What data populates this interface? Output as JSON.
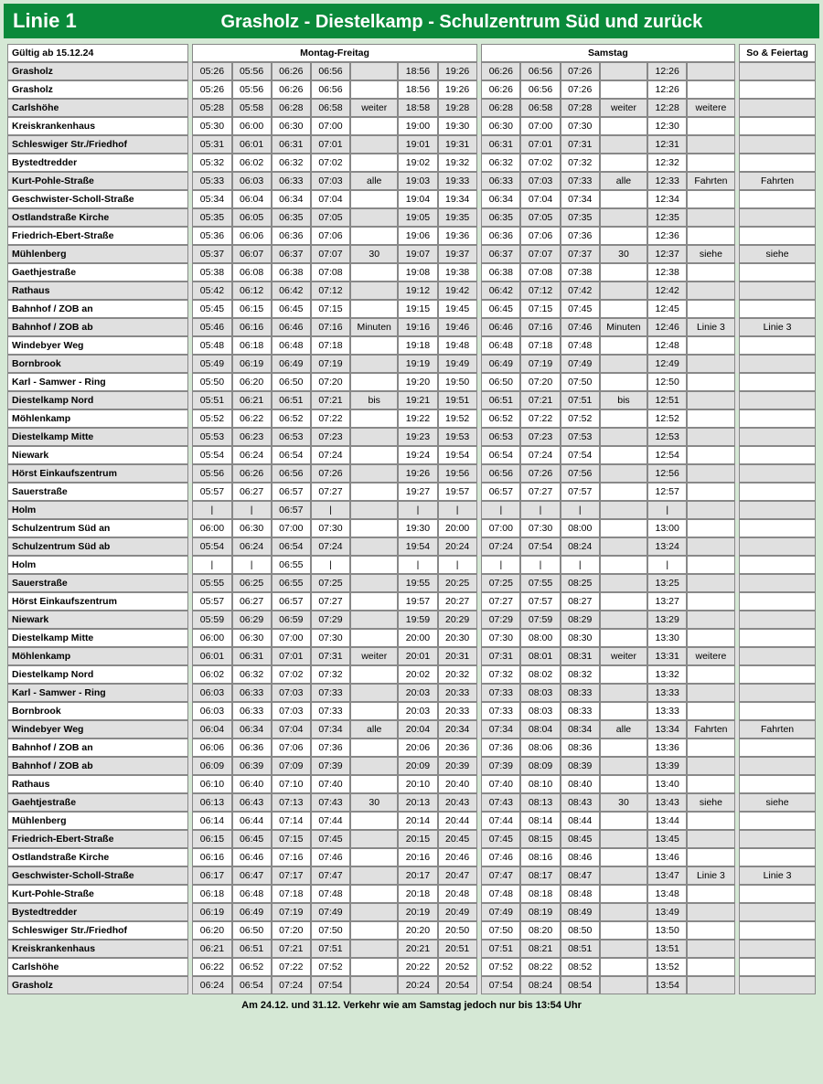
{
  "header": {
    "line": "Linie  1",
    "route": "Grasholz - Diestelkamp - Schulzentrum Süd und zurück"
  },
  "valid_from": "Gültig ab 15.12.24",
  "section_labels": {
    "mf": "Montag-Freitag",
    "sa": "Samstag",
    "so": "So & Feiertag"
  },
  "footer": "Am 24.12. und 31.12. Verkehr wie am Samstag jedoch nur bis 13:54 Uhr",
  "rows": [
    {
      "s": "Grasholz",
      "mf": [
        "05:26",
        "05:56",
        "06:26",
        "06:56",
        "",
        "18:56",
        "19:26"
      ],
      "sa": [
        "06:26",
        "06:56",
        "07:26",
        "",
        "12:26",
        ""
      ],
      "so": "",
      "sh": 1
    },
    {
      "s": "Grasholz",
      "mf": [
        "05:26",
        "05:56",
        "06:26",
        "06:56",
        "",
        "18:56",
        "19:26"
      ],
      "sa": [
        "06:26",
        "06:56",
        "07:26",
        "",
        "12:26",
        ""
      ],
      "so": ""
    },
    {
      "s": "Carlshöhe",
      "mf": [
        "05:28",
        "05:58",
        "06:28",
        "06:58",
        "weiter",
        "18:58",
        "19:28"
      ],
      "sa": [
        "06:28",
        "06:58",
        "07:28",
        "weiter",
        "12:28",
        "weitere"
      ],
      "so": "",
      "sh": 1
    },
    {
      "s": "Kreiskrankenhaus",
      "mf": [
        "05:30",
        "06:00",
        "06:30",
        "07:00",
        "",
        "19:00",
        "19:30"
      ],
      "sa": [
        "06:30",
        "07:00",
        "07:30",
        "",
        "12:30",
        ""
      ],
      "so": ""
    },
    {
      "s": "Schleswiger Str./Friedhof",
      "mf": [
        "05:31",
        "06:01",
        "06:31",
        "07:01",
        "",
        "19:01",
        "19:31"
      ],
      "sa": [
        "06:31",
        "07:01",
        "07:31",
        "",
        "12:31",
        ""
      ],
      "so": "",
      "sh": 1
    },
    {
      "s": "Bystedtredder",
      "mf": [
        "05:32",
        "06:02",
        "06:32",
        "07:02",
        "",
        "19:02",
        "19:32"
      ],
      "sa": [
        "06:32",
        "07:02",
        "07:32",
        "",
        "12:32",
        ""
      ],
      "so": ""
    },
    {
      "s": "Kurt-Pohle-Straße",
      "mf": [
        "05:33",
        "06:03",
        "06:33",
        "07:03",
        "alle",
        "19:03",
        "19:33"
      ],
      "sa": [
        "06:33",
        "07:03",
        "07:33",
        "alle",
        "12:33",
        "Fahrten"
      ],
      "so": "Fahrten",
      "sh": 1
    },
    {
      "s": "Geschwister-Scholl-Straße",
      "mf": [
        "05:34",
        "06:04",
        "06:34",
        "07:04",
        "",
        "19:04",
        "19:34"
      ],
      "sa": [
        "06:34",
        "07:04",
        "07:34",
        "",
        "12:34",
        ""
      ],
      "so": ""
    },
    {
      "s": "Ostlandstraße Kirche",
      "mf": [
        "05:35",
        "06:05",
        "06:35",
        "07:05",
        "",
        "19:05",
        "19:35"
      ],
      "sa": [
        "06:35",
        "07:05",
        "07:35",
        "",
        "12:35",
        ""
      ],
      "so": "",
      "sh": 1
    },
    {
      "s": "Friedrich-Ebert-Straße",
      "mf": [
        "05:36",
        "06:06",
        "06:36",
        "07:06",
        "",
        "19:06",
        "19:36"
      ],
      "sa": [
        "06:36",
        "07:06",
        "07:36",
        "",
        "12:36",
        ""
      ],
      "so": ""
    },
    {
      "s": "Mühlenberg",
      "mf": [
        "05:37",
        "06:07",
        "06:37",
        "07:07",
        "30",
        "19:07",
        "19:37"
      ],
      "sa": [
        "06:37",
        "07:07",
        "07:37",
        "30",
        "12:37",
        "siehe"
      ],
      "so": "siehe",
      "sh": 1
    },
    {
      "s": "Gaethjestraße",
      "mf": [
        "05:38",
        "06:08",
        "06:38",
        "07:08",
        "",
        "19:08",
        "19:38"
      ],
      "sa": [
        "06:38",
        "07:08",
        "07:38",
        "",
        "12:38",
        ""
      ],
      "so": ""
    },
    {
      "s": "Rathaus",
      "mf": [
        "05:42",
        "06:12",
        "06:42",
        "07:12",
        "",
        "19:12",
        "19:42"
      ],
      "sa": [
        "06:42",
        "07:12",
        "07:42",
        "",
        "12:42",
        ""
      ],
      "so": "",
      "sh": 1
    },
    {
      "s": "Bahnhof / ZOB an",
      "mf": [
        "05:45",
        "06:15",
        "06:45",
        "07:15",
        "",
        "19:15",
        "19:45"
      ],
      "sa": [
        "06:45",
        "07:15",
        "07:45",
        "",
        "12:45",
        ""
      ],
      "so": ""
    },
    {
      "s": "Bahnhof / ZOB ab",
      "mf": [
        "05:46",
        "06:16",
        "06:46",
        "07:16",
        "Minuten",
        "19:16",
        "19:46"
      ],
      "sa": [
        "06:46",
        "07:16",
        "07:46",
        "Minuten",
        "12:46",
        "Linie 3"
      ],
      "so": "Linie 3",
      "sh": 1
    },
    {
      "s": "Windebyer Weg",
      "mf": [
        "05:48",
        "06:18",
        "06:48",
        "07:18",
        "",
        "19:18",
        "19:48"
      ],
      "sa": [
        "06:48",
        "07:18",
        "07:48",
        "",
        "12:48",
        ""
      ],
      "so": ""
    },
    {
      "s": "Bornbrook",
      "mf": [
        "05:49",
        "06:19",
        "06:49",
        "07:19",
        "",
        "19:19",
        "19:49"
      ],
      "sa": [
        "06:49",
        "07:19",
        "07:49",
        "",
        "12:49",
        ""
      ],
      "so": "",
      "sh": 1
    },
    {
      "s": "Karl - Samwer - Ring",
      "mf": [
        "05:50",
        "06:20",
        "06:50",
        "07:20",
        "",
        "19:20",
        "19:50"
      ],
      "sa": [
        "06:50",
        "07:20",
        "07:50",
        "",
        "12:50",
        ""
      ],
      "so": ""
    },
    {
      "s": "Diestelkamp Nord",
      "mf": [
        "05:51",
        "06:21",
        "06:51",
        "07:21",
        "bis",
        "19:21",
        "19:51"
      ],
      "sa": [
        "06:51",
        "07:21",
        "07:51",
        "bis",
        "12:51",
        ""
      ],
      "so": "",
      "sh": 1
    },
    {
      "s": "Möhlenkamp",
      "mf": [
        "05:52",
        "06:22",
        "06:52",
        "07:22",
        "",
        "19:22",
        "19:52"
      ],
      "sa": [
        "06:52",
        "07:22",
        "07:52",
        "",
        "12:52",
        ""
      ],
      "so": ""
    },
    {
      "s": "Diestelkamp Mitte",
      "mf": [
        "05:53",
        "06:23",
        "06:53",
        "07:23",
        "",
        "19:23",
        "19:53"
      ],
      "sa": [
        "06:53",
        "07:23",
        "07:53",
        "",
        "12:53",
        ""
      ],
      "so": "",
      "sh": 1
    },
    {
      "s": "Niewark",
      "mf": [
        "05:54",
        "06:24",
        "06:54",
        "07:24",
        "",
        "19:24",
        "19:54"
      ],
      "sa": [
        "06:54",
        "07:24",
        "07:54",
        "",
        "12:54",
        ""
      ],
      "so": ""
    },
    {
      "s": "Hörst Einkaufszentrum",
      "mf": [
        "05:56",
        "06:26",
        "06:56",
        "07:26",
        "",
        "19:26",
        "19:56"
      ],
      "sa": [
        "06:56",
        "07:26",
        "07:56",
        "",
        "12:56",
        ""
      ],
      "so": "",
      "sh": 1
    },
    {
      "s": "Sauerstraße",
      "mf": [
        "05:57",
        "06:27",
        "06:57",
        "07:27",
        "",
        "19:27",
        "19:57"
      ],
      "sa": [
        "06:57",
        "07:27",
        "07:57",
        "",
        "12:57",
        ""
      ],
      "so": ""
    },
    {
      "s": "Holm",
      "mf": [
        "|",
        "|",
        "06:57",
        "|",
        "",
        "|",
        "|"
      ],
      "sa": [
        "|",
        "|",
        "|",
        "",
        "|",
        ""
      ],
      "so": "",
      "sh": 1
    },
    {
      "s": "Schulzentrum Süd an",
      "mf": [
        "06:00",
        "06:30",
        "07:00",
        "07:30",
        "",
        "19:30",
        "20:00"
      ],
      "sa": [
        "07:00",
        "07:30",
        "08:00",
        "",
        "13:00",
        ""
      ],
      "so": ""
    },
    {
      "s": "Schulzentrum Süd ab",
      "mf": [
        "05:54",
        "06:24",
        "06:54",
        "07:24",
        "",
        "19:54",
        "20:24"
      ],
      "sa": [
        "07:24",
        "07:54",
        "08:24",
        "",
        "13:24",
        ""
      ],
      "so": "",
      "sh": 1
    },
    {
      "s": "Holm",
      "mf": [
        "|",
        "|",
        "06:55",
        "|",
        "",
        "|",
        "|"
      ],
      "sa": [
        "|",
        "|",
        "|",
        "",
        "|",
        ""
      ],
      "so": ""
    },
    {
      "s": "Sauerstraße",
      "mf": [
        "05:55",
        "06:25",
        "06:55",
        "07:25",
        "",
        "19:55",
        "20:25"
      ],
      "sa": [
        "07:25",
        "07:55",
        "08:25",
        "",
        "13:25",
        ""
      ],
      "so": "",
      "sh": 1
    },
    {
      "s": "Hörst Einkaufszentrum",
      "mf": [
        "05:57",
        "06:27",
        "06:57",
        "07:27",
        "",
        "19:57",
        "20:27"
      ],
      "sa": [
        "07:27",
        "07:57",
        "08:27",
        "",
        "13:27",
        ""
      ],
      "so": ""
    },
    {
      "s": "Niewark",
      "mf": [
        "05:59",
        "06:29",
        "06:59",
        "07:29",
        "",
        "19:59",
        "20:29"
      ],
      "sa": [
        "07:29",
        "07:59",
        "08:29",
        "",
        "13:29",
        ""
      ],
      "so": "",
      "sh": 1
    },
    {
      "s": "Diestelkamp Mitte",
      "mf": [
        "06:00",
        "06:30",
        "07:00",
        "07:30",
        "",
        "20:00",
        "20:30"
      ],
      "sa": [
        "07:30",
        "08:00",
        "08:30",
        "",
        "13:30",
        ""
      ],
      "so": ""
    },
    {
      "s": "Möhlenkamp",
      "mf": [
        "06:01",
        "06:31",
        "07:01",
        "07:31",
        "weiter",
        "20:01",
        "20:31"
      ],
      "sa": [
        "07:31",
        "08:01",
        "08:31",
        "weiter",
        "13:31",
        "weitere"
      ],
      "so": "",
      "sh": 1
    },
    {
      "s": "Diestelkamp Nord",
      "mf": [
        "06:02",
        "06:32",
        "07:02",
        "07:32",
        "",
        "20:02",
        "20:32"
      ],
      "sa": [
        "07:32",
        "08:02",
        "08:32",
        "",
        "13:32",
        ""
      ],
      "so": ""
    },
    {
      "s": "Karl - Samwer - Ring",
      "mf": [
        "06:03",
        "06:33",
        "07:03",
        "07:33",
        "",
        "20:03",
        "20:33"
      ],
      "sa": [
        "07:33",
        "08:03",
        "08:33",
        "",
        "13:33",
        ""
      ],
      "so": "",
      "sh": 1
    },
    {
      "s": "Bornbrook",
      "mf": [
        "06:03",
        "06:33",
        "07:03",
        "07:33",
        "",
        "20:03",
        "20:33"
      ],
      "sa": [
        "07:33",
        "08:03",
        "08:33",
        "",
        "13:33",
        ""
      ],
      "so": ""
    },
    {
      "s": "Windebyer Weg",
      "mf": [
        "06:04",
        "06:34",
        "07:04",
        "07:34",
        "alle",
        "20:04",
        "20:34"
      ],
      "sa": [
        "07:34",
        "08:04",
        "08:34",
        "alle",
        "13:34",
        "Fahrten"
      ],
      "so": "Fahrten",
      "sh": 1
    },
    {
      "s": "Bahnhof / ZOB an",
      "mf": [
        "06:06",
        "06:36",
        "07:06",
        "07:36",
        "",
        "20:06",
        "20:36"
      ],
      "sa": [
        "07:36",
        "08:06",
        "08:36",
        "",
        "13:36",
        ""
      ],
      "so": ""
    },
    {
      "s": "Bahnhof / ZOB ab",
      "mf": [
        "06:09",
        "06:39",
        "07:09",
        "07:39",
        "",
        "20:09",
        "20:39"
      ],
      "sa": [
        "07:39",
        "08:09",
        "08:39",
        "",
        "13:39",
        ""
      ],
      "so": "",
      "sh": 1
    },
    {
      "s": "Rathaus",
      "mf": [
        "06:10",
        "06:40",
        "07:10",
        "07:40",
        "",
        "20:10",
        "20:40"
      ],
      "sa": [
        "07:40",
        "08:10",
        "08:40",
        "",
        "13:40",
        ""
      ],
      "so": ""
    },
    {
      "s": "Gaehtjestraße",
      "mf": [
        "06:13",
        "06:43",
        "07:13",
        "07:43",
        "30",
        "20:13",
        "20:43"
      ],
      "sa": [
        "07:43",
        "08:13",
        "08:43",
        "30",
        "13:43",
        "siehe"
      ],
      "so": "siehe",
      "sh": 1
    },
    {
      "s": "Mühlenberg",
      "mf": [
        "06:14",
        "06:44",
        "07:14",
        "07:44",
        "",
        "20:14",
        "20:44"
      ],
      "sa": [
        "07:44",
        "08:14",
        "08:44",
        "",
        "13:44",
        ""
      ],
      "so": ""
    },
    {
      "s": "Friedrich-Ebert-Straße",
      "mf": [
        "06:15",
        "06:45",
        "07:15",
        "07:45",
        "",
        "20:15",
        "20:45"
      ],
      "sa": [
        "07:45",
        "08:15",
        "08:45",
        "",
        "13:45",
        ""
      ],
      "so": "",
      "sh": 1
    },
    {
      "s": "Ostlandstraße Kirche",
      "mf": [
        "06:16",
        "06:46",
        "07:16",
        "07:46",
        "",
        "20:16",
        "20:46"
      ],
      "sa": [
        "07:46",
        "08:16",
        "08:46",
        "",
        "13:46",
        ""
      ],
      "so": ""
    },
    {
      "s": "Geschwister-Scholl-Straße",
      "mf": [
        "06:17",
        "06:47",
        "07:17",
        "07:47",
        "",
        "20:17",
        "20:47"
      ],
      "sa": [
        "07:47",
        "08:17",
        "08:47",
        "",
        "13:47",
        "Linie 3"
      ],
      "so": "Linie 3",
      "sh": 1
    },
    {
      "s": "Kurt-Pohle-Straße",
      "mf": [
        "06:18",
        "06:48",
        "07:18",
        "07:48",
        "",
        "20:18",
        "20:48"
      ],
      "sa": [
        "07:48",
        "08:18",
        "08:48",
        "",
        "13:48",
        ""
      ],
      "so": ""
    },
    {
      "s": "Bystedtredder",
      "mf": [
        "06:19",
        "06:49",
        "07:19",
        "07:49",
        "",
        "20:19",
        "20:49"
      ],
      "sa": [
        "07:49",
        "08:19",
        "08:49",
        "",
        "13:49",
        ""
      ],
      "so": "",
      "sh": 1
    },
    {
      "s": "Schleswiger Str./Friedhof",
      "mf": [
        "06:20",
        "06:50",
        "07:20",
        "07:50",
        "",
        "20:20",
        "20:50"
      ],
      "sa": [
        "07:50",
        "08:20",
        "08:50",
        "",
        "13:50",
        ""
      ],
      "so": ""
    },
    {
      "s": "Kreiskrankenhaus",
      "mf": [
        "06:21",
        "06:51",
        "07:21",
        "07:51",
        "",
        "20:21",
        "20:51"
      ],
      "sa": [
        "07:51",
        "08:21",
        "08:51",
        "",
        "13:51",
        ""
      ],
      "so": "",
      "sh": 1
    },
    {
      "s": "Carlshöhe",
      "mf": [
        "06:22",
        "06:52",
        "07:22",
        "07:52",
        "",
        "20:22",
        "20:52"
      ],
      "sa": [
        "07:52",
        "08:22",
        "08:52",
        "",
        "13:52",
        ""
      ],
      "so": ""
    },
    {
      "s": "Grasholz",
      "mf": [
        "06:24",
        "06:54",
        "07:24",
        "07:54",
        "",
        "20:24",
        "20:54"
      ],
      "sa": [
        "07:54",
        "08:24",
        "08:54",
        "",
        "13:54",
        ""
      ],
      "so": "",
      "sh": 1
    }
  ]
}
